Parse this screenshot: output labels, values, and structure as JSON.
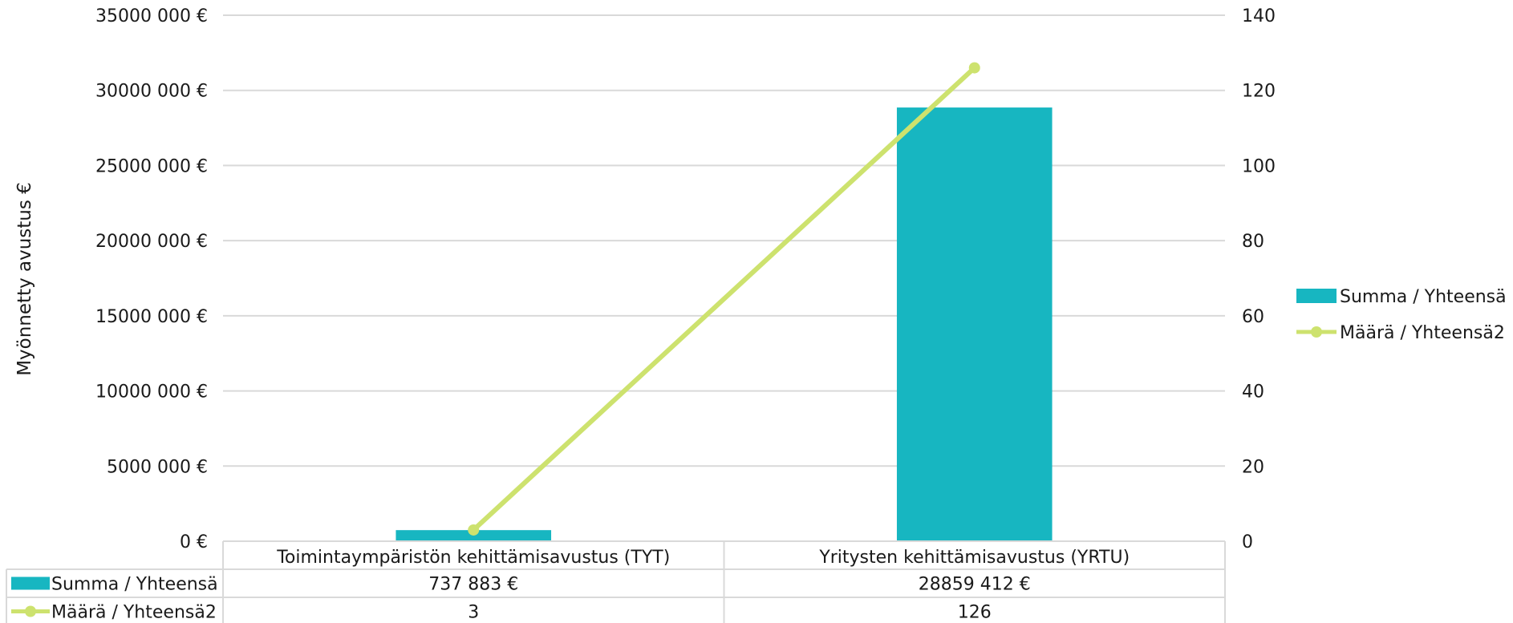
{
  "chart_data": {
    "type": "bar",
    "categories": [
      "Toimintaympäristön kehittämisavustus (TYT)",
      "Yritysten kehittämisavustus (YRTU)"
    ],
    "series": [
      {
        "name": "Summa  / Yhteensä",
        "kind": "bar",
        "axis": "left",
        "color": "#17b6c1",
        "values": [
          737883,
          28859412
        ],
        "labels": [
          "737 883 €",
          "28859 412 €"
        ]
      },
      {
        "name": "Määrä  / Yhteensä2",
        "kind": "line",
        "axis": "right",
        "color": "#cde26e",
        "values": [
          3,
          126
        ],
        "labels": [
          "3",
          "126"
        ]
      }
    ],
    "ylabel": "Myönnetty avustus €",
    "ylim": [
      0,
      35000000
    ],
    "y_ticks": [
      0,
      5000000,
      10000000,
      15000000,
      20000000,
      25000000,
      30000000,
      35000000
    ],
    "y_tick_labels": [
      "0 €",
      "5000 000 €",
      "10000 000 €",
      "15000 000 €",
      "20000 000 €",
      "25000 000 €",
      "30000 000 €",
      "35000 000 €"
    ],
    "y2lim": [
      0,
      140
    ],
    "y2_ticks": [
      0,
      20,
      40,
      60,
      80,
      100,
      120,
      140
    ],
    "y2_tick_labels": [
      "0",
      "20",
      "40",
      "60",
      "80",
      "100",
      "120",
      "140"
    ],
    "grid": true,
    "legend": "right",
    "data_table": true,
    "colors": {
      "grid": "#d9d9d9",
      "table_border": "#d9d9d9",
      "text": "#1a1a1a"
    }
  }
}
